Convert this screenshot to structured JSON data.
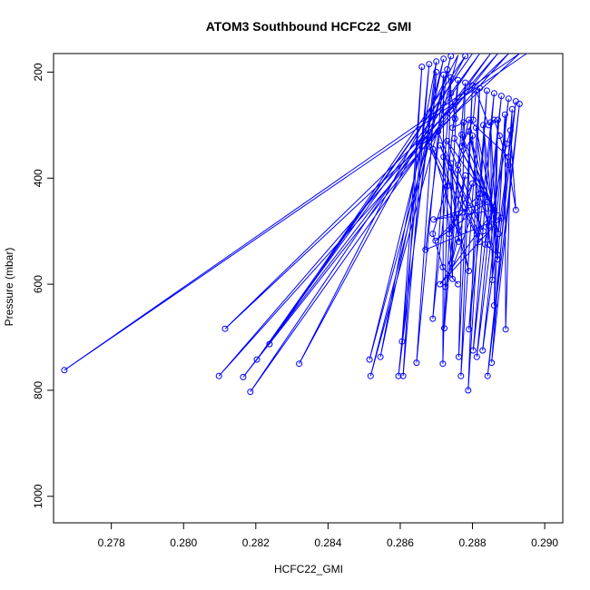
{
  "chart_data": {
    "type": "line",
    "title": "ATOM3 Southbound HCFC22_GMI",
    "xlabel": "HCFC22_GMI",
    "ylabel": "Pressure (mbar)",
    "xlim": [
      0.2764,
      0.2905
    ],
    "ylim": [
      1050,
      165
    ],
    "y_reversed": true,
    "x_ticks": [
      0.278,
      0.28,
      0.282,
      0.284,
      0.286,
      0.288,
      0.29
    ],
    "x_tick_labels": [
      "0.278",
      "0.280",
      "0.282",
      "0.284",
      "0.286",
      "0.288",
      "0.290"
    ],
    "y_ticks": [
      200,
      400,
      600,
      800,
      1000
    ],
    "y_tick_labels": [
      "200",
      "400",
      "600",
      "800",
      "1000"
    ],
    "grid": false,
    "series": [
      {
        "color": "#0000ff",
        "markers": "open-circle",
        "points": [
          [
            0.2895,
            165
          ],
          [
            0.2767,
            762
          ],
          [
            0.2893,
            165
          ],
          [
            0.28115,
            684
          ],
          [
            0.289,
            165
          ],
          [
            0.28098,
            773
          ],
          [
            0.2887,
            165
          ],
          [
            0.28165,
            775
          ],
          [
            0.2885,
            165
          ],
          [
            0.28185,
            803
          ],
          [
            0.2882,
            165
          ],
          [
            0.28203,
            742
          ],
          [
            0.288,
            165
          ],
          [
            0.28238,
            713
          ],
          [
            0.2878,
            170
          ],
          [
            0.2832,
            750
          ],
          [
            0.2876,
            168
          ],
          [
            0.28518,
            773
          ],
          [
            0.2874,
            170
          ],
          [
            0.28515,
            742
          ],
          [
            0.2872,
            175
          ],
          [
            0.28545,
            737
          ],
          [
            0.287,
            180
          ],
          [
            0.28595,
            773
          ],
          [
            0.2868,
            185
          ],
          [
            0.28608,
            773
          ],
          [
            0.2866,
            190
          ],
          [
            0.28605,
            708
          ],
          [
            0.287,
            200
          ],
          [
            0.28645,
            748
          ],
          [
            0.2872,
            205
          ],
          [
            0.28718,
            750
          ],
          [
            0.2874,
            210
          ],
          [
            0.2869,
            665
          ],
          [
            0.2876,
            215
          ],
          [
            0.28722,
            683
          ],
          [
            0.2878,
            220
          ],
          [
            0.28762,
            737
          ],
          [
            0.288,
            225
          ],
          [
            0.28768,
            773
          ],
          [
            0.2882,
            230
          ],
          [
            0.28788,
            800
          ],
          [
            0.2884,
            235
          ],
          [
            0.2879,
            685
          ],
          [
            0.2886,
            240
          ],
          [
            0.28802,
            725
          ],
          [
            0.2888,
            245
          ],
          [
            0.28812,
            737
          ],
          [
            0.289,
            250
          ],
          [
            0.28828,
            725
          ],
          [
            0.2892,
            255
          ],
          [
            0.28842,
            773
          ],
          [
            0.2893,
            260
          ],
          [
            0.28853,
            748
          ],
          [
            0.2891,
            270
          ],
          [
            0.28892,
            685
          ],
          [
            0.2889,
            280
          ],
          [
            0.2886,
            640
          ],
          [
            0.2887,
            290
          ],
          [
            0.28855,
            592
          ],
          [
            0.2885,
            295
          ],
          [
            0.2887,
            553
          ],
          [
            0.2883,
            300
          ],
          [
            0.28848,
            525
          ],
          [
            0.2881,
            305
          ],
          [
            0.28872,
            505
          ],
          [
            0.2879,
            312
          ],
          [
            0.28845,
            490
          ],
          [
            0.2877,
            318
          ],
          [
            0.28868,
            470
          ],
          [
            0.2875,
            325
          ],
          [
            0.28858,
            455
          ],
          [
            0.2873,
            330
          ],
          [
            0.2883,
            500
          ],
          [
            0.2871,
            338
          ],
          [
            0.2882,
            520
          ],
          [
            0.2869,
            345
          ],
          [
            0.2879,
            575
          ],
          [
            0.2872,
            360
          ],
          [
            0.28745,
            590
          ],
          [
            0.2874,
            372
          ],
          [
            0.28762,
            520
          ],
          [
            0.2876,
            385
          ],
          [
            0.28742,
            560
          ],
          [
            0.2878,
            395
          ],
          [
            0.28735,
            505
          ],
          [
            0.288,
            410
          ],
          [
            0.28725,
            605
          ],
          [
            0.2882,
            430
          ],
          [
            0.28698,
            518
          ],
          [
            0.2884,
            445
          ],
          [
            0.28692,
            478
          ],
          [
            0.2886,
            460
          ],
          [
            0.2871,
            600
          ],
          [
            0.2888,
            475
          ],
          [
            0.2867,
            535
          ],
          [
            0.2873,
            195
          ],
          [
            0.2874,
            240
          ],
          [
            0.28752,
            288
          ],
          [
            0.28745,
            305
          ],
          [
            0.28775,
            295
          ],
          [
            0.2877,
            340
          ],
          [
            0.28802,
            290
          ],
          [
            0.2881,
            235
          ],
          [
            0.28845,
            300
          ],
          [
            0.2886,
            290
          ],
          [
            0.28875,
            320
          ],
          [
            0.289,
            375
          ],
          [
            0.2892,
            460
          ],
          [
            0.28905,
            310
          ],
          [
            0.28895,
            335
          ],
          [
            0.28835,
            525
          ],
          [
            0.2887,
            545
          ],
          [
            0.289,
            360
          ],
          [
            0.2879,
            290
          ],
          [
            0.2876,
            375
          ],
          [
            0.288,
            320
          ],
          [
            0.2882,
            510
          ],
          [
            0.28705,
            312
          ],
          [
            0.2868,
            340
          ],
          [
            0.2873,
            415
          ],
          [
            0.2869,
            505
          ],
          [
            0.28718,
            568
          ],
          [
            0.2876,
            600
          ]
        ]
      }
    ]
  }
}
